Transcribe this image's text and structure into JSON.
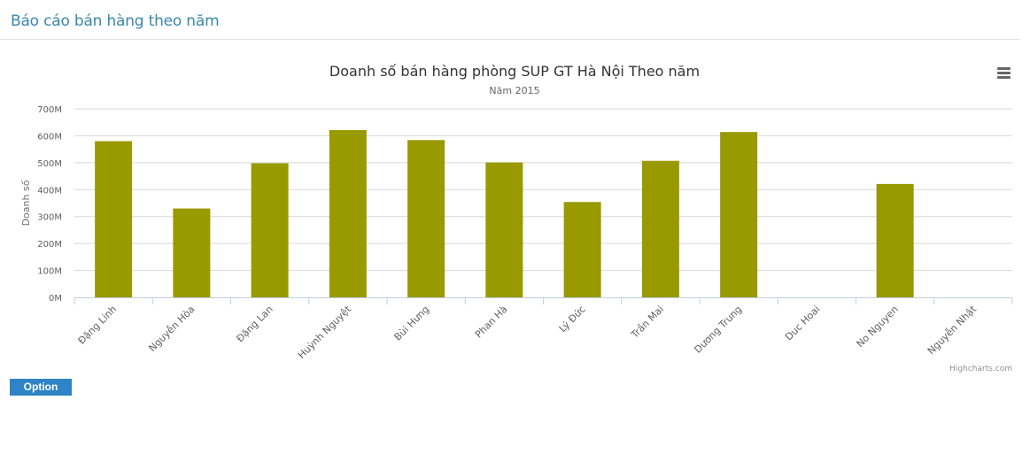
{
  "page": {
    "title": "Báo cáo bán hàng theo năm"
  },
  "chart_menu_icon": "hamburger-menu-icon",
  "chart_data": {
    "type": "bar",
    "title": "Doanh số bán hàng phòng SUP GT Hà Nội Theo năm",
    "subtitle": "Năm 2015",
    "xlabel": "",
    "ylabel": "Doanh số",
    "ylim": [
      0,
      700000000
    ],
    "yticks": [
      "0M",
      "100M",
      "200M",
      "300M",
      "400M",
      "500M",
      "600M",
      "700M"
    ],
    "categories": [
      "Đặng Linh",
      "Nguyễn Hòa",
      "Đặng Lan",
      "Huỳnh Nguyệt",
      "Bùi Hưng",
      "Phan Hà",
      "Lý Đức",
      "Trần Mai",
      "Dương Trung",
      "Duc Hoai",
      "No Nguyen",
      "Nguyễn Nhật"
    ],
    "values": [
      580000000,
      330000000,
      498000000,
      621000000,
      584000000,
      501000000,
      354000000,
      507000000,
      614000000,
      0,
      421000000,
      0
    ],
    "color": "#999900",
    "grid": true,
    "legend": false,
    "credits": "Highcharts.com"
  },
  "option_button": {
    "label": "Option"
  }
}
